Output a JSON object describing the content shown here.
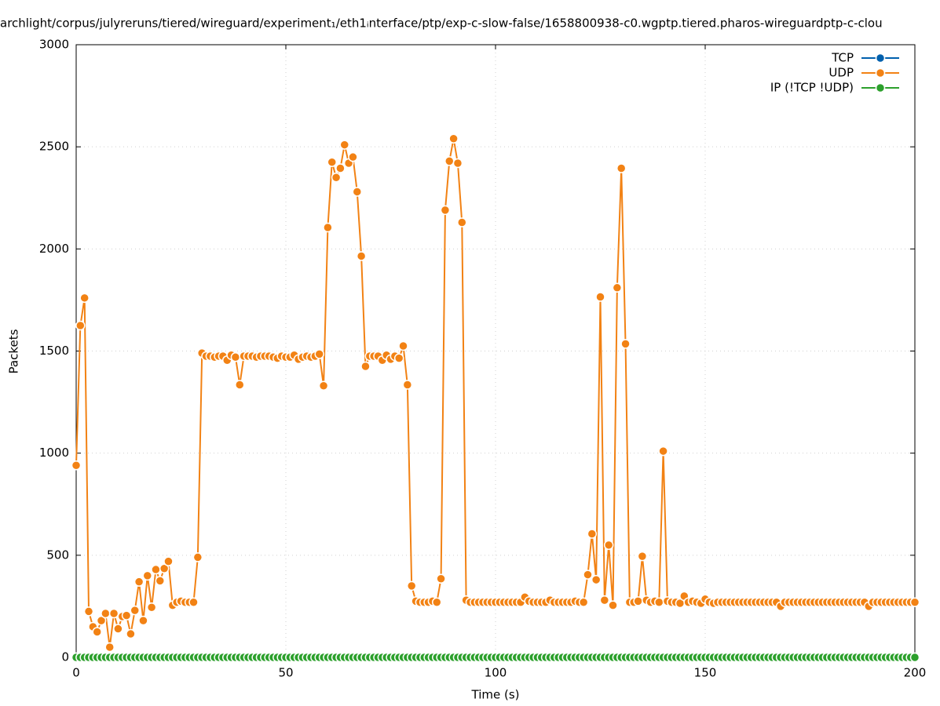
{
  "chart_data": {
    "type": "line",
    "title": "archlight/corpus/julyreruns/tiered/wireguard/experiment₁/eth1ᵢnterface/ptp/exp-c-slow-false/1658800938-c0.wgptp.tiered.pharos-wireguardptp-c-clou",
    "x_label": "Time (s)",
    "y_label": "Packets",
    "xlim": [
      0,
      200
    ],
    "xticks": [
      0,
      50,
      100,
      150,
      200
    ],
    "ylim": [
      0,
      3000
    ],
    "yticks": [
      0,
      500,
      1000,
      1500,
      2000,
      2500,
      3000
    ],
    "grid": true,
    "legend": "top-right",
    "x": [
      0,
      1,
      2,
      3,
      4,
      5,
      6,
      7,
      8,
      9,
      10,
      11,
      12,
      13,
      14,
      15,
      16,
      17,
      18,
      19,
      20,
      21,
      22,
      23,
      24,
      25,
      26,
      27,
      28,
      29,
      30,
      31,
      32,
      33,
      34,
      35,
      36,
      37,
      38,
      39,
      40,
      41,
      42,
      43,
      44,
      45,
      46,
      47,
      48,
      49,
      50,
      51,
      52,
      53,
      54,
      55,
      56,
      57,
      58,
      59,
      60,
      61,
      62,
      63,
      64,
      65,
      66,
      67,
      68,
      69,
      70,
      71,
      72,
      73,
      74,
      75,
      76,
      77,
      78,
      79,
      80,
      81,
      82,
      83,
      84,
      85,
      86,
      87,
      88,
      89,
      90,
      91,
      92,
      93,
      94,
      95,
      96,
      97,
      98,
      99,
      100,
      101,
      102,
      103,
      104,
      105,
      106,
      107,
      108,
      109,
      110,
      111,
      112,
      113,
      114,
      115,
      116,
      117,
      118,
      119,
      120,
      121,
      122,
      123,
      124,
      125,
      126,
      127,
      128,
      129,
      130,
      131,
      132,
      133,
      134,
      135,
      136,
      137,
      138,
      139,
      140,
      141,
      142,
      143,
      144,
      145,
      146,
      147,
      148,
      149,
      150,
      151,
      152,
      153,
      154,
      155,
      156,
      157,
      158,
      159,
      160,
      161,
      162,
      163,
      164,
      165,
      166,
      167,
      168,
      169,
      170,
      171,
      172,
      173,
      174,
      175,
      176,
      177,
      178,
      179,
      180,
      181,
      182,
      183,
      184,
      185,
      186,
      187,
      188,
      189,
      190,
      191,
      192,
      193,
      194,
      195,
      196,
      197,
      198,
      199,
      200
    ],
    "series": [
      {
        "name": "TCP",
        "color": "#0060ad",
        "values": [
          0,
          0,
          0,
          0,
          0,
          0,
          0,
          0,
          0,
          0,
          0,
          0,
          0,
          0,
          0,
          0,
          0,
          0,
          0,
          0,
          0,
          0,
          0,
          0,
          0,
          0,
          0,
          0,
          0,
          0,
          0,
          0,
          0,
          0,
          0,
          0,
          0,
          0,
          0,
          0,
          0,
          0,
          0,
          0,
          0,
          0,
          0,
          0,
          0,
          0,
          0,
          0,
          0,
          0,
          0,
          0,
          0,
          0,
          0,
          0,
          0,
          0,
          0,
          0,
          0,
          0,
          0,
          0,
          0,
          0,
          0,
          0,
          0,
          0,
          0,
          0,
          0,
          0,
          0,
          0,
          0,
          0,
          0,
          0,
          0,
          0,
          0,
          0,
          0,
          0,
          0,
          0,
          0,
          0,
          0,
          0,
          0,
          0,
          0,
          0,
          0,
          0,
          0,
          0,
          0,
          0,
          0,
          0,
          0,
          0,
          0,
          0,
          0,
          0,
          0,
          0,
          0,
          0,
          0,
          0,
          0,
          0,
          0,
          0,
          0,
          0,
          0,
          0,
          0,
          0,
          0,
          0,
          0,
          0,
          0,
          0,
          0,
          0,
          0,
          0,
          0,
          0,
          0,
          0,
          0,
          0,
          0,
          0,
          0,
          0,
          0,
          0,
          0,
          0,
          0,
          0,
          0,
          0,
          0,
          0,
          0,
          0,
          0,
          0,
          0,
          0,
          0,
          0,
          0,
          0,
          0,
          0,
          0,
          0,
          0,
          0,
          0,
          0,
          0,
          0,
          0,
          0,
          0,
          0,
          0,
          0,
          0,
          0,
          0,
          0,
          0,
          0,
          0,
          0,
          0,
          0,
          0,
          0,
          0,
          0,
          0
        ]
      },
      {
        "name": "UDP",
        "color": "#f28214",
        "values": [
          940,
          1625,
          1760,
          225,
          150,
          125,
          180,
          215,
          50,
          215,
          140,
          200,
          205,
          115,
          230,
          370,
          180,
          400,
          245,
          430,
          375,
          435,
          470,
          255,
          270,
          275,
          270,
          270,
          270,
          490,
          1490,
          1475,
          1475,
          1470,
          1475,
          1475,
          1455,
          1480,
          1470,
          1335,
          1475,
          1475,
          1475,
          1470,
          1475,
          1475,
          1475,
          1470,
          1465,
          1475,
          1470,
          1470,
          1480,
          1460,
          1470,
          1475,
          1470,
          1475,
          1485,
          1330,
          2105,
          2425,
          2350,
          2395,
          2510,
          2420,
          2450,
          2280,
          1965,
          1425,
          1475,
          1475,
          1475,
          1455,
          1480,
          1460,
          1475,
          1465,
          1525,
          1335,
          350,
          275,
          270,
          270,
          270,
          275,
          270,
          385,
          2190,
          2430,
          2540,
          2420,
          2130,
          280,
          270,
          270,
          270,
          270,
          270,
          270,
          270,
          270,
          270,
          270,
          270,
          270,
          270,
          295,
          275,
          270,
          270,
          270,
          270,
          280,
          270,
          270,
          270,
          270,
          270,
          275,
          270,
          270,
          405,
          605,
          380,
          1765,
          280,
          550,
          255,
          1810,
          2395,
          1535,
          270,
          270,
          275,
          495,
          280,
          270,
          275,
          270,
          1010,
          275,
          270,
          270,
          265,
          300,
          270,
          275,
          270,
          265,
          285,
          270,
          265,
          270,
          270,
          270,
          270,
          270,
          270,
          270,
          270,
          270,
          270,
          270,
          270,
          270,
          270,
          270,
          250,
          270,
          270,
          270,
          270,
          270,
          270,
          270,
          270,
          270,
          270,
          270,
          270,
          270,
          270,
          270,
          270,
          270,
          270,
          270,
          270,
          250,
          270,
          270,
          270,
          270,
          270,
          270,
          270,
          270,
          270,
          270,
          270
        ]
      },
      {
        "name": "IP (!TCP  !UDP)",
        "color": "#2ca02c",
        "values": [
          0,
          0,
          0,
          0,
          0,
          0,
          0,
          0,
          0,
          0,
          0,
          0,
          0,
          0,
          0,
          0,
          0,
          0,
          0,
          0,
          0,
          0,
          0,
          0,
          0,
          0,
          0,
          0,
          0,
          0,
          0,
          0,
          0,
          0,
          0,
          0,
          0,
          0,
          0,
          0,
          0,
          0,
          0,
          0,
          0,
          0,
          0,
          0,
          0,
          0,
          0,
          0,
          0,
          0,
          0,
          0,
          0,
          0,
          0,
          0,
          0,
          0,
          0,
          0,
          0,
          0,
          0,
          0,
          0,
          0,
          0,
          0,
          0,
          0,
          0,
          0,
          0,
          0,
          0,
          0,
          0,
          0,
          0,
          0,
          0,
          0,
          0,
          0,
          0,
          0,
          0,
          0,
          0,
          0,
          0,
          0,
          0,
          0,
          0,
          0,
          0,
          0,
          0,
          0,
          0,
          0,
          0,
          0,
          0,
          0,
          0,
          0,
          0,
          0,
          0,
          0,
          0,
          0,
          0,
          0,
          0,
          0,
          0,
          0,
          0,
          0,
          0,
          0,
          0,
          0,
          0,
          0,
          0,
          0,
          0,
          0,
          0,
          0,
          0,
          0,
          0,
          0,
          0,
          0,
          0,
          0,
          0,
          0,
          0,
          0,
          0,
          0,
          0,
          0,
          0,
          0,
          0,
          0,
          0,
          0,
          0,
          0,
          0,
          0,
          0,
          0,
          0,
          0,
          0,
          0,
          0,
          0,
          0,
          0,
          0,
          0,
          0,
          0,
          0,
          0,
          0,
          0,
          0,
          0,
          0,
          0,
          0,
          0,
          0,
          0,
          0,
          0,
          0,
          0,
          0,
          0,
          0,
          0,
          0,
          0,
          0
        ]
      }
    ]
  }
}
